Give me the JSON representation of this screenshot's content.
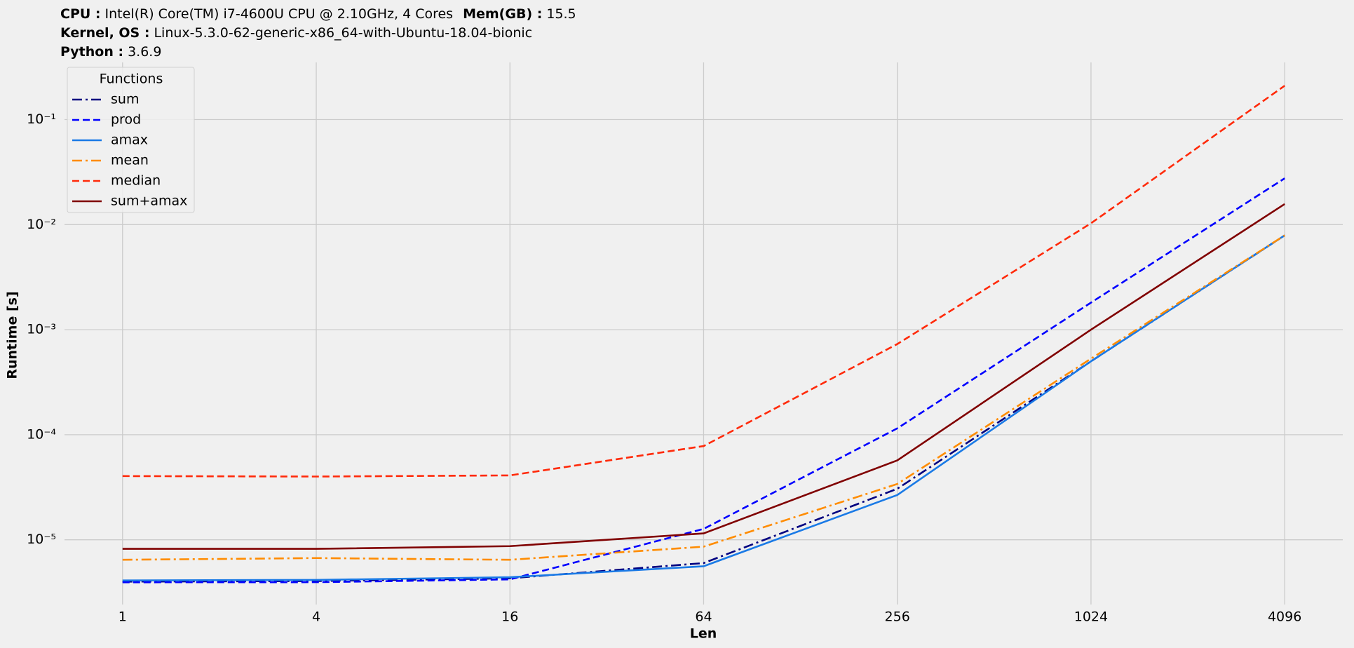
{
  "system_info": [
    [
      {
        "label": "CPU :",
        "value": "Intel(R) Core(TM) i7-4600U CPU @ 2.10GHz, 4 Cores"
      },
      {
        "label": "Mem(GB) :",
        "value": "15.5"
      }
    ],
    [
      {
        "label": "Kernel, OS :",
        "value": "Linux-5.3.0-62-generic-x86_64-with-Ubuntu-18.04-bionic"
      }
    ],
    [
      {
        "label": "Python :",
        "value": "3.6.9"
      }
    ]
  ],
  "chart_data": {
    "type": "line",
    "x_label": "Len",
    "y_label": "Runtime [s]",
    "x": [
      1,
      4,
      16,
      64,
      256,
      1024,
      4096
    ],
    "x_log_base": 2,
    "y_log_base": 10,
    "xlim": [
      0.66,
      6208
    ],
    "ylim": [
      2.42e-06,
      0.35
    ],
    "xticks": [
      1,
      4,
      16,
      64,
      256,
      1024,
      4096
    ],
    "yticks": [
      {
        "value": 1e-05,
        "label": "10⁻⁵"
      },
      {
        "value": 0.0001,
        "label": "10⁻⁴"
      },
      {
        "value": 0.001,
        "label": "10⁻³"
      },
      {
        "value": 0.01,
        "label": "10⁻²"
      },
      {
        "value": 0.1,
        "label": "10⁻¹"
      }
    ],
    "grid": true,
    "legend_title": "Functions",
    "legend_position": "upper-left",
    "series": [
      {
        "name": "sum",
        "color": "#000080",
        "dash": "dashdot",
        "values": [
          4e-06,
          4.05e-06,
          4.3e-06,
          6e-06,
          3.06e-05,
          0.0005,
          0.0079
        ]
      },
      {
        "name": "prod",
        "color": "#0000ff",
        "dash": "dashed",
        "values": [
          3.94e-06,
          3.95e-06,
          4.2e-06,
          1.27e-05,
          0.000115,
          0.00181,
          0.0276
        ]
      },
      {
        "name": "amax",
        "color": "#1a7ae6",
        "dash": "solid",
        "values": [
          4.1e-06,
          4.15e-06,
          4.4e-06,
          5.6e-06,
          2.67e-05,
          0.0005,
          0.0079
        ]
      },
      {
        "name": "mean",
        "color": "#ff8c00",
        "dash": "dashdot",
        "values": [
          6.45e-06,
          6.7e-06,
          6.45e-06,
          8.6e-06,
          3.4e-05,
          0.00053,
          0.0079
        ]
      },
      {
        "name": "median",
        "color": "#ff2a0a",
        "dash": "dashed",
        "values": [
          4.04e-05,
          4e-05,
          4.1e-05,
          7.8e-05,
          0.00073,
          0.0103,
          0.21
        ]
      },
      {
        "name": "sum+amax",
        "color": "#800000",
        "dash": "solid",
        "values": [
          8.2e-06,
          8.2e-06,
          8.7e-06,
          1.15e-05,
          5.7e-05,
          0.001,
          0.0157
        ]
      }
    ]
  }
}
